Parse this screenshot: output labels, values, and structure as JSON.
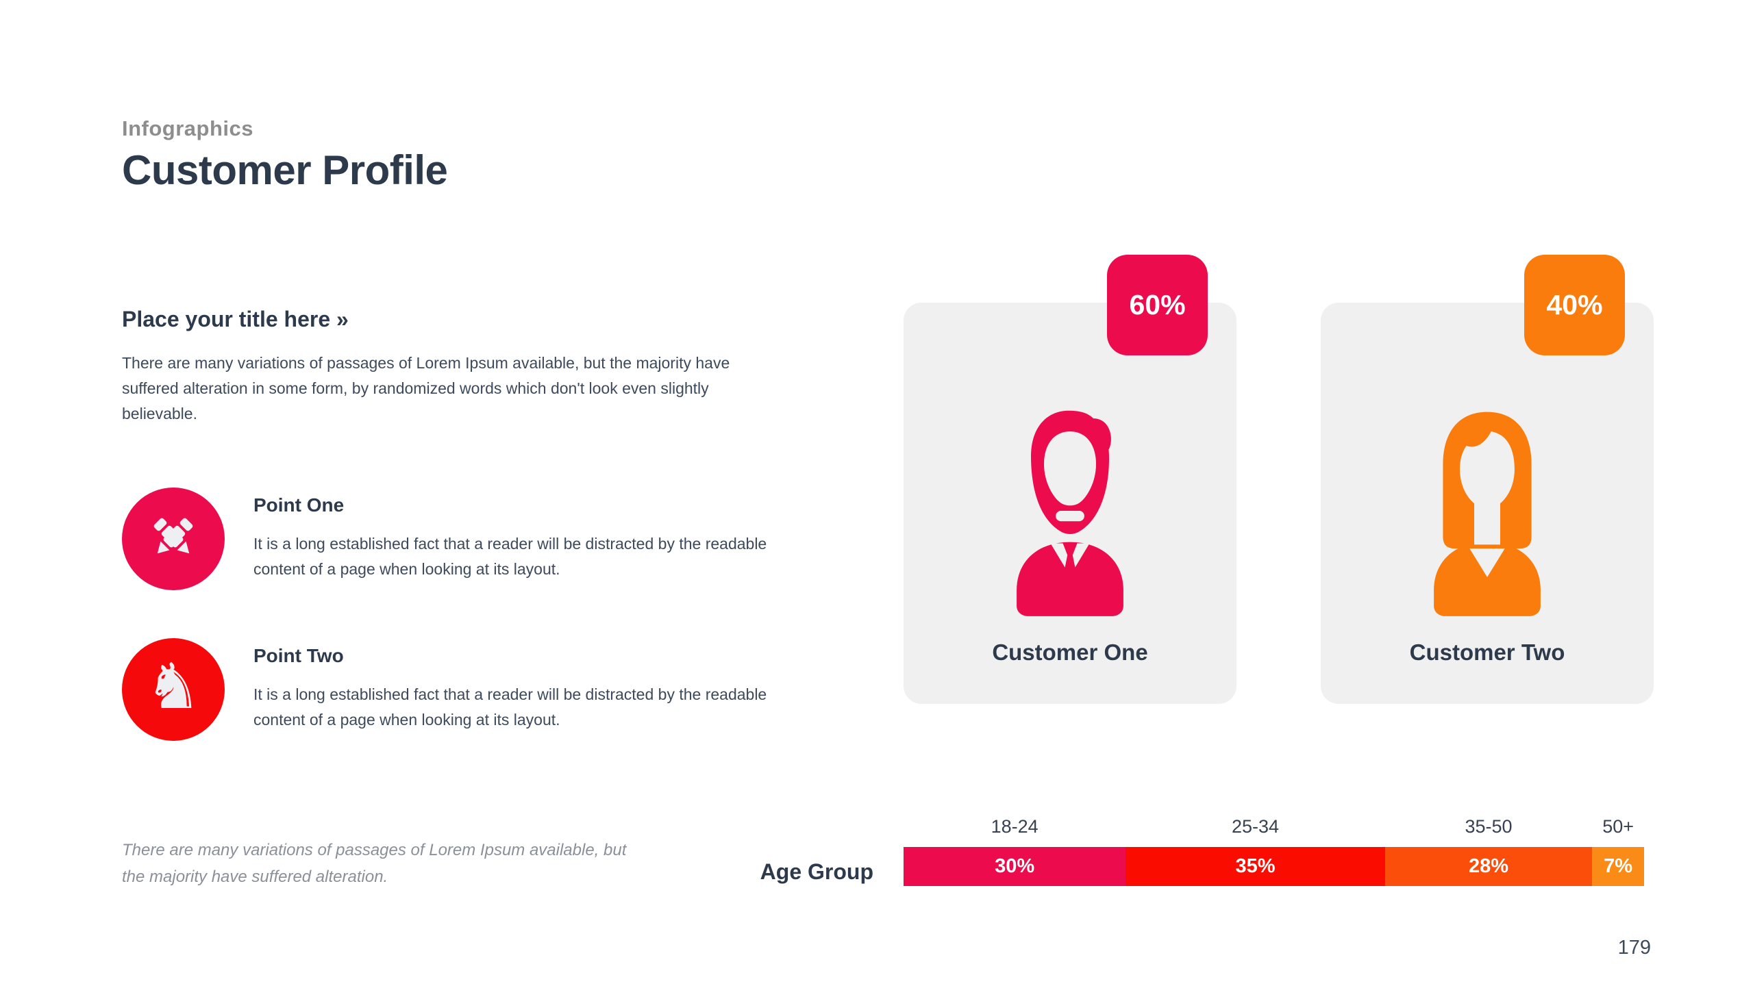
{
  "header": {
    "eyebrow": "Infographics",
    "title": "Customer Profile"
  },
  "left": {
    "section_title": "Place your title here »",
    "intro": "There are many variations of passages of Lorem Ipsum available, but the majority have suffered alteration in some form, by randomized words which don't look even slightly believable.",
    "points": [
      {
        "title": "Point One",
        "body": "It is a long established fact that a reader will be distracted by the readable content of a page when looking at its layout.",
        "icon": "crossed-pencils-icon",
        "color": "#EC0C4E"
      },
      {
        "title": "Point Two",
        "body": "It is a long established fact that a reader will be distracted by the readable content of a page when looking at its layout.",
        "icon": "chess-knight-icon",
        "glyph": "♞",
        "color": "#F5090B"
      }
    ],
    "footnote": "There are many variations of passages of Lorem Ipsum available, but the majority have suffered alteration."
  },
  "customers": [
    {
      "name": "Customer One",
      "share": "60%",
      "color": "#EC0C4E",
      "icon": "male-customer-icon"
    },
    {
      "name": "Customer Two",
      "share": "40%",
      "color": "#F97C0D",
      "icon": "female-customer-icon"
    }
  ],
  "chart_data": {
    "type": "bar",
    "variant": "horizontal-stacked",
    "title": "",
    "row_label": "Age Group",
    "categories": [
      "18-24",
      "25-34",
      "35-50",
      "50+"
    ],
    "values": [
      30,
      35,
      28,
      7
    ],
    "value_labels": [
      "30%",
      "35%",
      "28%",
      "7%"
    ],
    "colors": [
      "#EC0C4E",
      "#FA0D00",
      "#FB4E0B",
      "#F98B16"
    ],
    "xlim": [
      0,
      100
    ],
    "legend": "none",
    "grid": false
  },
  "footer": {
    "page_number": "179"
  },
  "theme": {
    "card_background": "#F0F0F0",
    "heading_color": "#2D3A4B",
    "body_color": "#3D4A5C",
    "muted_color": "#8D8D8D"
  }
}
